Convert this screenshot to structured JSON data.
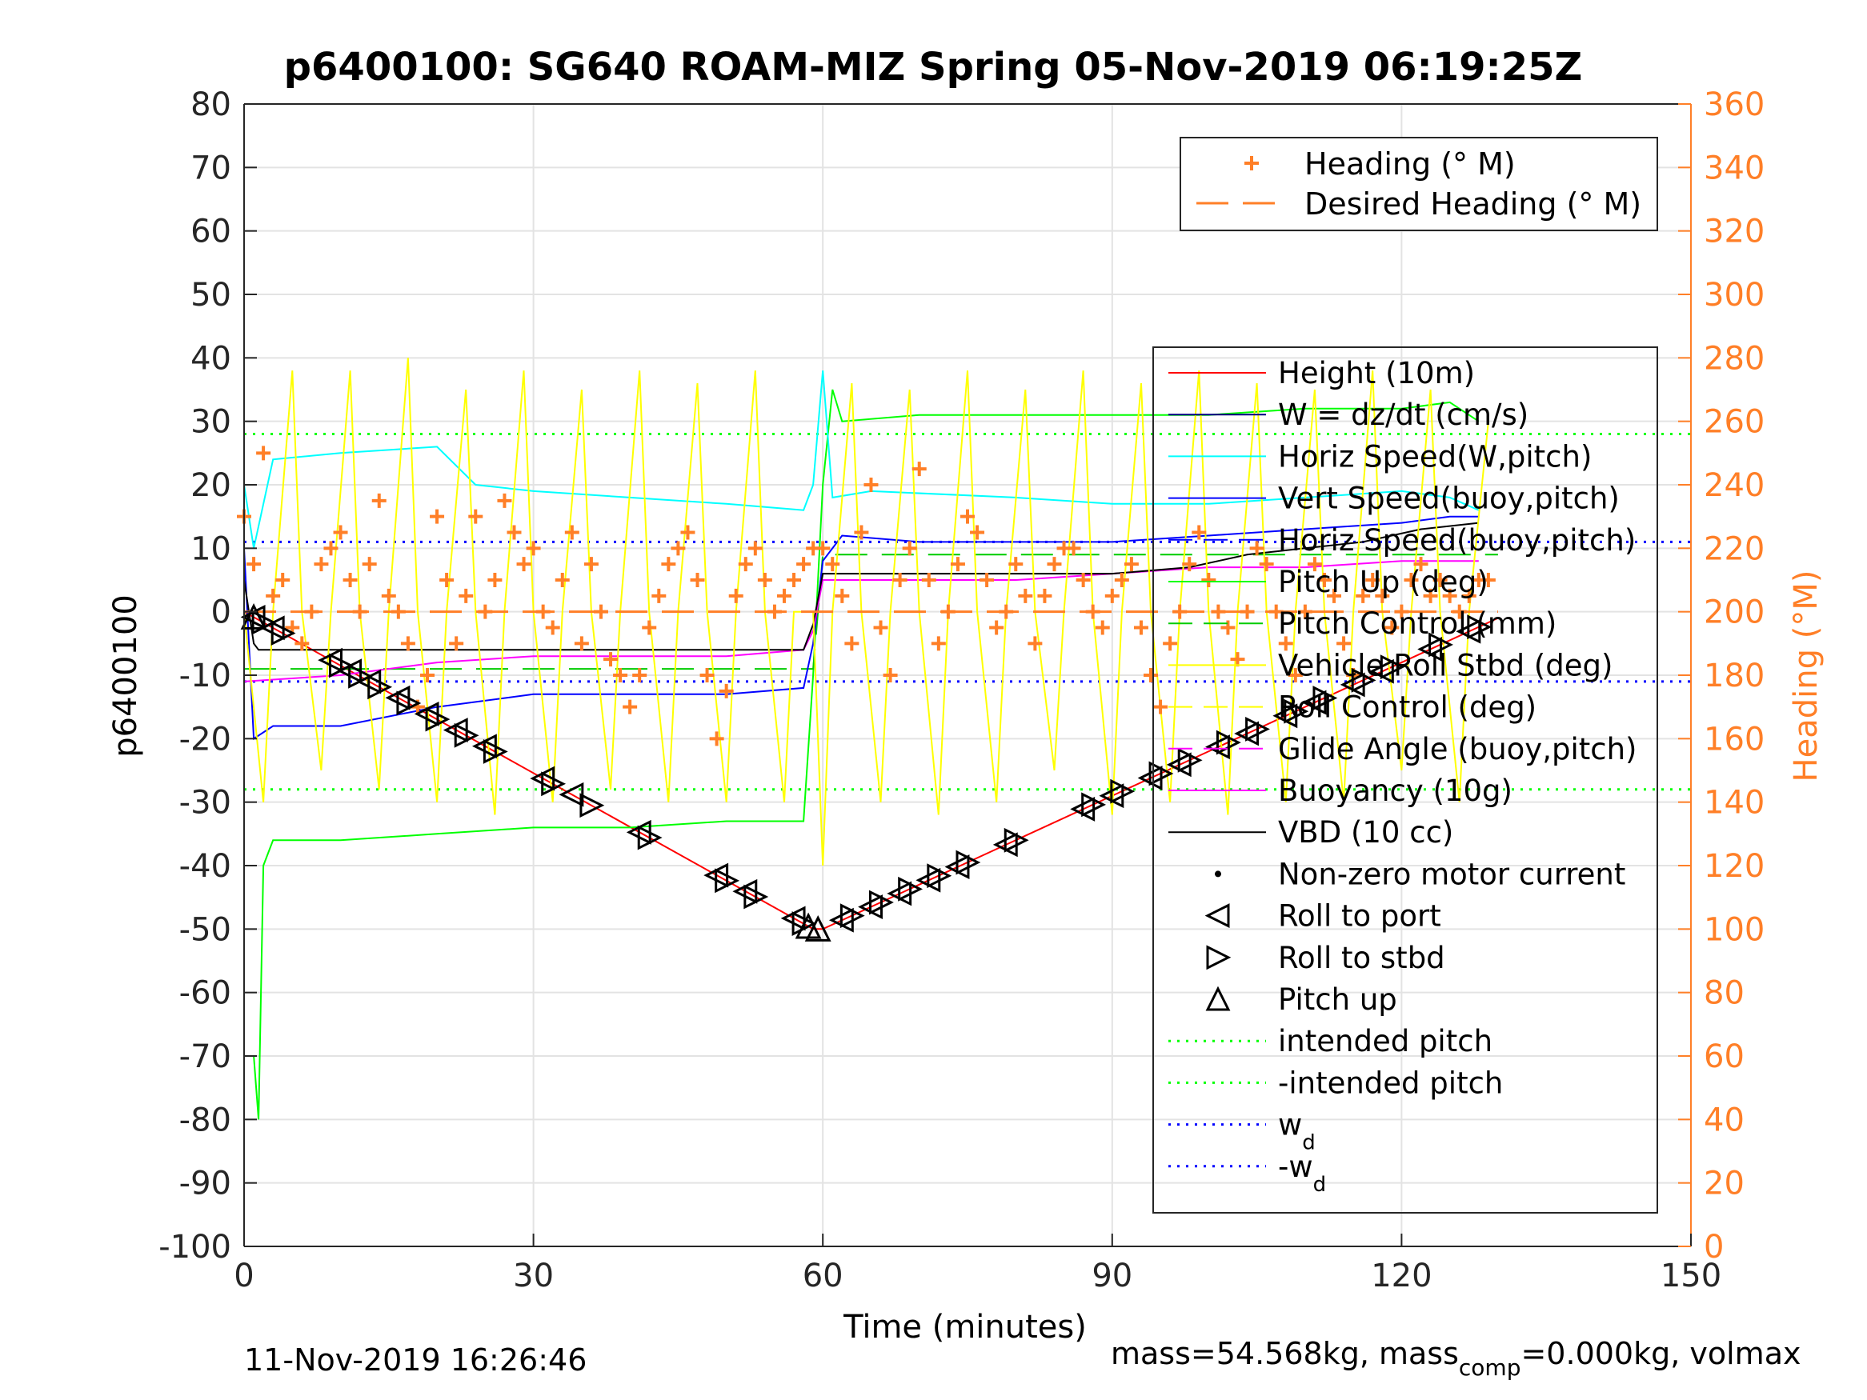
{
  "chart_data": {
    "type": "line",
    "title": "p6400100: SG640 ROAM-MIZ Spring 05-Nov-2019 06:19:25Z",
    "xlabel": "Time (minutes)",
    "ylabel": "p6400100",
    "y2label": "Heading (°M)",
    "xlim": [
      0,
      150
    ],
    "ylim": [
      -100,
      80
    ],
    "y2lim": [
      0,
      360
    ],
    "xticks": [
      0,
      30,
      60,
      90,
      120,
      150
    ],
    "yticks": [
      80,
      70,
      60,
      50,
      40,
      30,
      20,
      10,
      0,
      -10,
      -20,
      -30,
      -40,
      -50,
      -60,
      -70,
      -80,
      -90,
      -100
    ],
    "y2ticks": [
      360,
      340,
      320,
      300,
      280,
      260,
      240,
      220,
      200,
      180,
      160,
      140,
      120,
      100,
      80,
      60,
      40,
      20,
      0
    ],
    "grid": true,
    "colors": {
      "height": "#ff0000",
      "w": "#000080",
      "horiz_speed": "#00ffff",
      "vert_speed": "#0000ff",
      "horiz_speed_buoy": "#0000ff",
      "pitch_up": "#00ff00",
      "pitch_control": "#00cc00",
      "roll": "#ffff00",
      "roll_control": "#ffff00",
      "glide": "#ff00ff",
      "buoyancy": "#ff00ff",
      "vbd": "#000000",
      "heading": "#ff7f27",
      "axis2": "#ff7f27",
      "intended_pitch": "#00ff00",
      "wd": "#0000ff"
    },
    "legend_top": {
      "placement": "top-right",
      "entries": [
        "Heading (° M)",
        "Desired Heading (° M)"
      ]
    },
    "legend_main": {
      "placement": "right",
      "entries": [
        "Height (10m)",
        "W = dz/dt (cm/s)",
        "Horiz Speed(W,pitch)",
        "Vert Speed(buoy,pitch)",
        "Horiz Speed(buoy,pitch)",
        "Pitch Up (deg)",
        "Pitch Control (mm)",
        "Vehicle Roll Stbd (deg)",
        "Roll Control (deg)",
        "Glide Angle (buoy,pitch)",
        "Buoyancy (10g)",
        "VBD (10 cc)",
        "Non-zero motor current",
        "Roll to port",
        "Roll to stbd",
        "Pitch up",
        "intended pitch",
        "-intended pitch",
        "w",
        "-w"
      ],
      "subscripts": [
        "d",
        "d"
      ]
    },
    "series": [
      {
        "key": "height",
        "name": "Height (10m)",
        "x": [
          0,
          59,
          60,
          130
        ],
        "y": [
          0,
          -50,
          -50,
          -1
        ]
      },
      {
        "key": "pitch_up",
        "name": "Pitch Up (deg)",
        "x": [
          1,
          1.5,
          2,
          3,
          10,
          20,
          30,
          40,
          50,
          58,
          59,
          60,
          61,
          62,
          70,
          80,
          90,
          100,
          110,
          120,
          125,
          128
        ],
        "y": [
          -70,
          -80,
          -40,
          -36,
          -36,
          -35,
          -34,
          -34,
          -33,
          -33,
          -10,
          20,
          35,
          30,
          31,
          31,
          31,
          31,
          32,
          32,
          33,
          30
        ]
      },
      {
        "key": "pitch_control",
        "name": "Pitch Control (mm)",
        "x": [
          0,
          58,
          59,
          60,
          130
        ],
        "y": [
          -9,
          -9,
          -9,
          9,
          9
        ]
      },
      {
        "key": "horiz_speed",
        "name": "Horiz Speed(W,pitch)",
        "x": [
          0,
          1,
          3,
          10,
          20,
          24,
          30,
          40,
          50,
          58,
          59,
          60,
          61,
          65,
          80,
          90,
          100,
          110,
          120,
          125,
          128
        ],
        "y": [
          20,
          10,
          24,
          25,
          26,
          20,
          19,
          18,
          17,
          16,
          20,
          38,
          18,
          19,
          18,
          17,
          17,
          18,
          19,
          18,
          16
        ]
      },
      {
        "key": "vert_speed",
        "name": "Vert Speed(buoy,pitch)",
        "x": [
          0,
          1,
          3,
          10,
          20,
          30,
          40,
          50,
          58,
          59,
          60,
          62,
          70,
          80,
          90,
          100,
          110,
          120,
          125,
          128
        ],
        "y": [
          10,
          -20,
          -18,
          -18,
          -15,
          -13,
          -13,
          -13,
          -12,
          -5,
          8,
          12,
          11,
          11,
          11,
          12,
          13,
          14,
          15,
          15
        ]
      },
      {
        "key": "glide",
        "name": "Glide Angle (buoy,pitch)",
        "x": [
          0,
          58,
          59,
          60,
          130
        ],
        "y": [
          0,
          0,
          0,
          0,
          0
        ]
      },
      {
        "key": "buoyancy",
        "name": "Buoyancy (10g)",
        "x": [
          0,
          10,
          20,
          30,
          40,
          50,
          58,
          59,
          60,
          65,
          80,
          90,
          100,
          110,
          120,
          125,
          128
        ],
        "y": [
          -11,
          -10,
          -8,
          -7,
          -7,
          -7,
          -6,
          -3,
          5,
          5,
          5,
          6,
          7,
          7,
          8,
          8,
          8
        ]
      },
      {
        "key": "vbd",
        "name": "VBD (10 cc)",
        "x": [
          0,
          1,
          1.5,
          58,
          59,
          60,
          62,
          90,
          98,
          104,
          110,
          116,
          122,
          128
        ],
        "y": [
          5,
          -5,
          -6,
          -6,
          -2,
          6,
          6,
          6,
          7,
          9,
          10,
          11,
          13,
          14
        ]
      },
      {
        "key": "roll",
        "name": "Vehicle Roll Stbd (deg)",
        "x": [
          0,
          2,
          3,
          5,
          6,
          8,
          9,
          11,
          12,
          14,
          15,
          17,
          18,
          20,
          21,
          23,
          24,
          26,
          27,
          29,
          30,
          32,
          33,
          35,
          36,
          38,
          39,
          41,
          42,
          44,
          45,
          47,
          48,
          50,
          51,
          53,
          54,
          56,
          57,
          58,
          59,
          60,
          61,
          63,
          64,
          66,
          67,
          69,
          70,
          72,
          73,
          75,
          76,
          78,
          79,
          81,
          82,
          84,
          85,
          87,
          88,
          90,
          91,
          93,
          94,
          96,
          97,
          99,
          100,
          102,
          103,
          105,
          106,
          108,
          109,
          111,
          112,
          114,
          115,
          117,
          118,
          120,
          121,
          123,
          124,
          126,
          127,
          129
        ],
        "y": [
          0,
          -30,
          0,
          38,
          0,
          -25,
          0,
          38,
          0,
          -28,
          0,
          40,
          0,
          -30,
          0,
          35,
          0,
          -32,
          0,
          38,
          0,
          -30,
          0,
          35,
          0,
          -28,
          0,
          38,
          0,
          -30,
          0,
          36,
          0,
          -30,
          0,
          38,
          0,
          -30,
          0,
          0,
          0,
          -40,
          0,
          36,
          0,
          -30,
          0,
          35,
          0,
          -32,
          0,
          38,
          0,
          -30,
          0,
          35,
          0,
          -25,
          0,
          38,
          0,
          -32,
          0,
          36,
          0,
          -30,
          0,
          38,
          0,
          -32,
          0,
          36,
          0,
          -30,
          0,
          35,
          0,
          -30,
          0,
          38,
          0,
          -25,
          0,
          35,
          0,
          -30,
          0,
          30
        ]
      },
      {
        "key": "wd",
        "name": "w d",
        "x": [
          0,
          150
        ],
        "y": [
          11,
          11
        ]
      },
      {
        "key": "neg_wd",
        "name": "-w d",
        "x": [
          0,
          150
        ],
        "y": [
          -11,
          -11
        ]
      },
      {
        "key": "intended_pitch",
        "name": "intended pitch",
        "x": [
          0,
          150
        ],
        "y": [
          28,
          28
        ]
      },
      {
        "key": "neg_intended_pitch",
        "name": "-intended pitch",
        "x": [
          0,
          150
        ],
        "y": [
          -28,
          -28
        ]
      }
    ],
    "heading": {
      "name": "Heading (° M)",
      "axis": "right",
      "x": [
        0,
        1,
        2,
        3,
        4,
        5,
        6,
        7,
        8,
        9,
        10,
        11,
        12,
        13,
        14,
        15,
        16,
        17,
        18,
        19,
        20,
        21,
        22,
        23,
        24,
        25,
        26,
        27,
        28,
        29,
        30,
        31,
        32,
        33,
        34,
        35,
        36,
        37,
        38,
        39,
        40,
        41,
        42,
        43,
        44,
        45,
        46,
        47,
        48,
        49,
        50,
        51,
        52,
        53,
        54,
        55,
        56,
        57,
        58,
        59,
        60,
        61,
        62,
        63,
        64,
        65,
        66,
        67,
        68,
        69,
        70,
        71,
        72,
        73,
        74,
        75,
        76,
        77,
        78,
        79,
        80,
        81,
        82,
        83,
        84,
        85,
        86,
        87,
        88,
        89,
        90,
        91,
        92,
        93,
        94,
        95,
        96,
        97,
        98,
        99,
        100,
        101,
        102,
        103,
        104,
        105,
        106,
        107,
        108,
        109,
        110,
        111,
        112,
        113,
        114,
        115,
        116,
        117,
        118,
        119,
        120,
        121,
        122,
        123,
        124,
        125,
        126,
        127,
        128,
        129
      ],
      "y": [
        230,
        215,
        250,
        205,
        210,
        195,
        190,
        200,
        215,
        220,
        225,
        210,
        200,
        215,
        235,
        205,
        200,
        190,
        170,
        180,
        230,
        210,
        190,
        205,
        230,
        200,
        210,
        235,
        225,
        215,
        220,
        200,
        195,
        210,
        225,
        190,
        215,
        200,
        185,
        180,
        170,
        180,
        195,
        205,
        215,
        220,
        225,
        210,
        180,
        160,
        175,
        205,
        215,
        220,
        210,
        200,
        205,
        210,
        215,
        220,
        220,
        215,
        205,
        190,
        225,
        240,
        195,
        180,
        210,
        220,
        245,
        210,
        190,
        200,
        215,
        230,
        225,
        210,
        195,
        200,
        215,
        205,
        190,
        205,
        215,
        220,
        220,
        210,
        200,
        195,
        205,
        210,
        215,
        195,
        180,
        170,
        190,
        200,
        215,
        225,
        210,
        200,
        195,
        185,
        200,
        220,
        215,
        200,
        190,
        180,
        200,
        215,
        210,
        205,
        190,
        180,
        205,
        210,
        205,
        195,
        200,
        210,
        215,
        205,
        210,
        205,
        200,
        205,
        210,
        210
      ]
    },
    "desired_heading": {
      "name": "Desired Heading (° M)",
      "axis": "right",
      "x": [
        0,
        130
      ],
      "y": [
        200,
        200
      ]
    },
    "markers": {
      "roll_to_port_x": [
        1,
        3,
        9,
        11,
        13,
        16,
        19,
        22,
        25,
        31,
        34,
        41,
        49,
        52,
        57,
        62,
        65,
        68,
        71,
        74,
        79,
        87,
        90,
        94,
        97,
        101,
        104,
        108,
        111,
        115,
        118,
        123,
        127
      ],
      "roll_to_stbd_x": [
        2,
        4,
        10,
        12,
        14,
        17,
        20,
        23,
        26,
        32,
        36,
        42,
        50,
        53,
        58,
        63,
        66,
        69,
        72,
        75,
        80,
        88,
        91,
        95,
        98,
        102,
        105,
        109,
        112,
        116,
        119,
        124,
        128
      ],
      "pitch_up_x": [
        1,
        58.5,
        59.5
      ]
    }
  },
  "footer": {
    "left": "11-Nov-2019 16:26:46",
    "right_prefix": "mass=54.568kg, mass",
    "right_sub": "comp",
    "right_suffix": "=0.000kg, volmax"
  }
}
